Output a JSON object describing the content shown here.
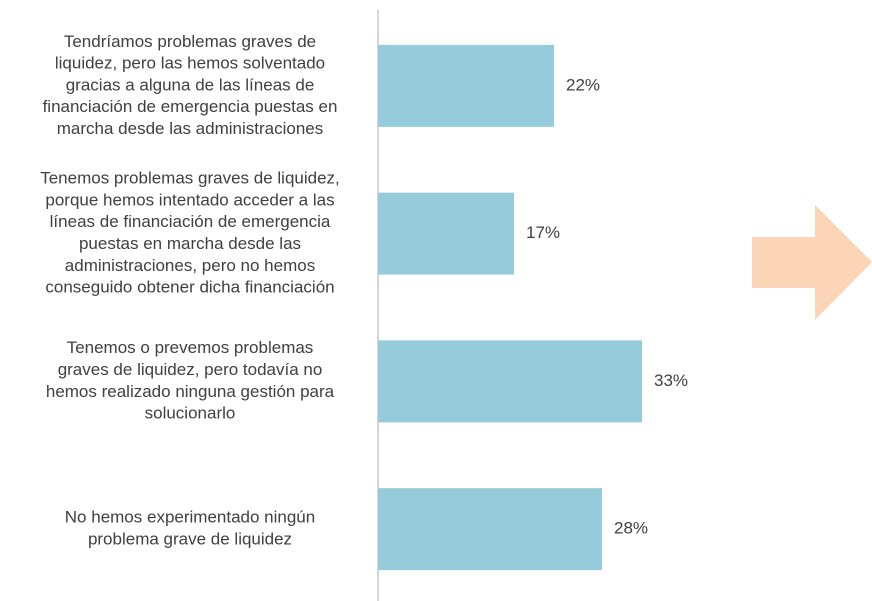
{
  "chart_data": {
    "type": "hbar",
    "categories": [
      [
        "Tendríamos problemas graves de",
        "liquidez, pero las hemos solventado",
        "gracias a alguna de las líneas de",
        "financiación de emergencia puestas en",
        "marcha desde las administraciones"
      ],
      [
        "Tenemos problemas graves de liquidez,",
        "porque hemos intentado acceder a las",
        "líneas de financiación de emergencia",
        "puestas en marcha desde las",
        "administraciones, pero no hemos",
        "conseguido obtener dicha financiación"
      ],
      [
        "Tenemos o prevemos problemas",
        "graves de liquidez, pero todavía no",
        "hemos realizado ninguna gestión para",
        "solucionarlo"
      ],
      [
        "No hemos experimentado ningún",
        "problema grave de liquidez"
      ]
    ],
    "values": [
      22,
      17,
      33,
      28
    ],
    "value_labels": [
      "22%",
      "17%",
      "33%",
      "28%"
    ],
    "color": "#96cbdc",
    "xlim": [
      0,
      50
    ]
  }
}
